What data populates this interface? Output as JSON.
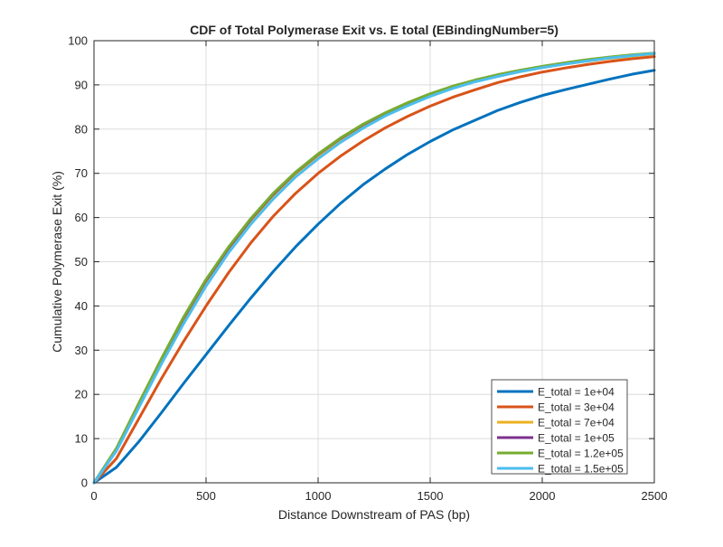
{
  "colors": {
    "background": "#ffffff",
    "axes": "#262626",
    "grid": "#dcdcdc"
  },
  "chart_data": {
    "type": "line",
    "title": "CDF of Total Polymerase Exit vs. E total (EBindingNumber=5)",
    "xlabel": "Distance Downstream of PAS (bp)",
    "ylabel": "Cumulative Polymerase Exit (%)",
    "xlim": [
      0,
      2500
    ],
    "ylim": [
      0,
      100
    ],
    "xticks": [
      0,
      500,
      1000,
      1500,
      2000,
      2500
    ],
    "yticks": [
      0,
      10,
      20,
      30,
      40,
      50,
      60,
      70,
      80,
      90,
      100
    ],
    "grid": true,
    "legend_location": "bottom-right",
    "x": [
      0,
      100,
      200,
      300,
      400,
      500,
      600,
      700,
      800,
      900,
      1000,
      1100,
      1200,
      1300,
      1400,
      1500,
      1600,
      1700,
      1800,
      1900,
      2000,
      2100,
      2200,
      2300,
      2400,
      2500
    ],
    "series": [
      {
        "name": "E_total = 1e+04",
        "color": "#0072bd",
        "values": [
          0,
          3.5,
          9.3,
          15.8,
          22.5,
          29.0,
          35.5,
          41.8,
          47.8,
          53.4,
          58.5,
          63.2,
          67.4,
          71.0,
          74.3,
          77.2,
          79.8,
          82.0,
          84.2,
          86.0,
          87.6,
          88.9,
          90.1,
          91.3,
          92.4,
          93.3
        ]
      },
      {
        "name": "E_total = 3e+04",
        "color": "#d95319",
        "values": [
          0,
          5.5,
          14.5,
          23.5,
          32.0,
          40.0,
          47.5,
          54.3,
          60.3,
          65.5,
          70.0,
          73.9,
          77.3,
          80.3,
          82.9,
          85.2,
          87.2,
          88.9,
          90.5,
          91.8,
          92.9,
          93.8,
          94.6,
          95.3,
          95.9,
          96.4
        ]
      },
      {
        "name": "E_total = 7e+04",
        "color": "#edb120",
        "values": [
          0,
          7.5,
          17.5,
          27.5,
          37.0,
          45.5,
          52.8,
          59.3,
          65.0,
          69.9,
          74.0,
          77.6,
          80.7,
          83.4,
          85.7,
          87.7,
          89.4,
          90.8,
          92.0,
          93.0,
          93.9,
          94.7,
          95.4,
          96.0,
          96.5,
          97.0
        ]
      },
      {
        "name": "E_total = 1e+05",
        "color": "#7e2f8e",
        "values": [
          0,
          7.7,
          17.8,
          27.8,
          37.3,
          45.8,
          53.1,
          59.6,
          65.3,
          70.2,
          74.3,
          77.9,
          81.0,
          83.6,
          85.9,
          87.9,
          89.6,
          91.0,
          92.2,
          93.2,
          94.1,
          94.9,
          95.6,
          96.2,
          96.7,
          97.1
        ]
      },
      {
        "name": "E_total = 1.2e+05",
        "color": "#77ac30",
        "values": [
          0,
          7.8,
          18.0,
          28.0,
          37.5,
          46.0,
          53.3,
          59.8,
          65.5,
          70.3,
          74.4,
          78.0,
          81.1,
          83.7,
          86.0,
          88.0,
          89.7,
          91.1,
          92.3,
          93.3,
          94.2,
          95.0,
          95.7,
          96.3,
          96.8,
          97.2
        ]
      },
      {
        "name": "E_total = 1.5e+05",
        "color": "#4dbeee",
        "values": [
          0,
          7.2,
          17.0,
          26.8,
          36.0,
          44.5,
          52.0,
          58.5,
          64.2,
          69.2,
          73.3,
          77.0,
          80.2,
          83.0,
          85.3,
          87.4,
          89.2,
          90.7,
          91.9,
          93.0,
          93.9,
          94.7,
          95.4,
          96.1,
          96.6,
          97.1
        ]
      }
    ]
  }
}
